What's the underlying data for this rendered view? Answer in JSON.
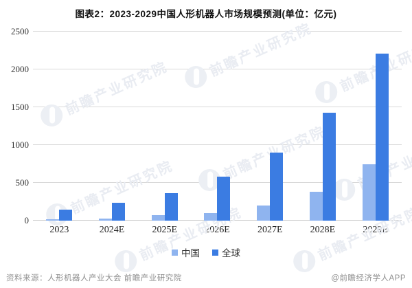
{
  "title": "图表2：2023-2029中国人形机器人市场规模预测(单位：亿元)",
  "chart_data": {
    "type": "bar",
    "title": "图表2：2023-2029中国人形机器人市场规模预测(单位：亿元)",
    "categories": [
      "2023",
      "2024E",
      "2025E",
      "2026E",
      "2027E",
      "2028E",
      "2029E"
    ],
    "series": [
      {
        "name": "中国",
        "color": "#8FB4EF",
        "values": [
          21,
          28,
          76,
          104,
          200,
          385,
          750
        ]
      },
      {
        "name": "全球",
        "color": "#3B7CE2",
        "values": [
          142,
          232,
          366,
          580,
          900,
          1425,
          2210
        ]
      }
    ],
    "unit": "亿元",
    "xlabel": "",
    "ylabel": "",
    "ylim": [
      0,
      2500
    ],
    "yticks": [
      0,
      500,
      1000,
      1500,
      2000,
      2500
    ],
    "grid": true,
    "grid_color": "#d9d9d9",
    "legend_position": "bottom"
  },
  "footer": {
    "source": "资料来源：人形机器人产业大会 前瞻产业研究院",
    "credit": "@前瞻经济学人APP"
  },
  "watermark": {
    "text": "前瞻产业研究院"
  }
}
